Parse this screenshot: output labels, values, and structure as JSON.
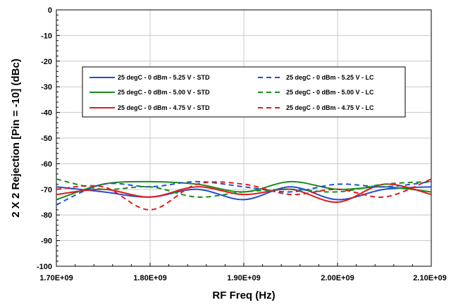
{
  "chart_data": {
    "type": "line",
    "title": "",
    "xlabel": "RF Freq (Hz)",
    "ylabel": "2 X 2 Rejection [Pin = -10] (dBc)",
    "xlim": [
      1700000000.0,
      2100000000.0
    ],
    "ylim": [
      -100,
      0
    ],
    "x_ticks": [
      1700000000.0,
      1800000000.0,
      1900000000.0,
      2000000000.0,
      2100000000.0
    ],
    "x_tick_labels": [
      "1.70E+09",
      "1.80E+09",
      "1.90E+09",
      "2.00E+09",
      "2.10E+09"
    ],
    "y_ticks": [
      0,
      -10,
      -20,
      -30,
      -40,
      -50,
      -60,
      -70,
      -80,
      -90,
      -100
    ],
    "y_tick_labels": [
      "0",
      "-10",
      "-20",
      "-30",
      "-40",
      "-50",
      "-60",
      "-70",
      "-80",
      "-90",
      "-100"
    ],
    "grid": true,
    "legend_position": "top-center",
    "x": [
      1700000000.0,
      1750000000.0,
      1800000000.0,
      1850000000.0,
      1900000000.0,
      1950000000.0,
      2000000000.0,
      2050000000.0,
      2100000000.0
    ],
    "series": [
      {
        "name": "25 degC - 0 dBm - 5.25 V - STD",
        "color": "#1f4fd8",
        "dash": "solid",
        "values": [
          -69,
          -71,
          -73,
          -70,
          -74,
          -69,
          -74,
          -70,
          -69
        ]
      },
      {
        "name": "25 degC - 0 dBm - 5.00 V - STD",
        "color": "#1a8c1a",
        "dash": "solid",
        "values": [
          -74,
          -68,
          -67,
          -68,
          -71,
          -67,
          -70,
          -69,
          -71
        ]
      },
      {
        "name": "25 degC - 0 dBm - 4.75 V - STD",
        "color": "#e01b1b",
        "dash": "solid",
        "values": [
          -72,
          -70,
          -73,
          -69,
          -72,
          -70,
          -75,
          -68,
          -72
        ]
      },
      {
        "name": "25 degC - 0 dBm - 5.25 V - LC",
        "color": "#1f4fd8",
        "dash": "dashed",
        "values": [
          -76,
          -68,
          -69,
          -67,
          -69,
          -71,
          -68,
          -69,
          -67
        ]
      },
      {
        "name": "25 degC - 0 dBm - 5.00 V - LC",
        "color": "#1a8c1a",
        "dash": "dashed",
        "values": [
          -66,
          -70,
          -69,
          -73,
          -71,
          -70,
          -71,
          -68,
          -67
        ]
      },
      {
        "name": "25 degC - 0 dBm - 4.75 V - LC",
        "color": "#e01b1b",
        "dash": "dashed",
        "values": [
          -70,
          -69,
          -78,
          -68,
          -68,
          -72,
          -70,
          -73,
          -66
        ]
      }
    ]
  }
}
